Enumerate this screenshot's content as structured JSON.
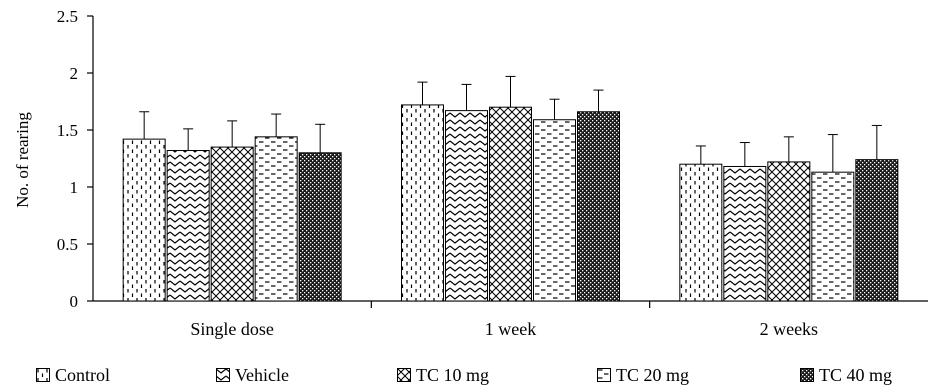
{
  "chart_data": {
    "type": "bar",
    "title": "",
    "xlabel": "",
    "ylabel": "No. of rearing",
    "ylim": [
      0,
      2.5
    ],
    "yticks": [
      "0",
      "0.5",
      "1",
      "1.5",
      "2",
      "2.5"
    ],
    "categories": [
      "Single dose",
      "1 week",
      "2 weeks"
    ],
    "grid": false,
    "legend_position": "bottom",
    "series": [
      {
        "name": "Control",
        "values": [
          1.42,
          1.72,
          1.2
        ],
        "errors": [
          0.24,
          0.2,
          0.16
        ],
        "pattern": "dash-vertical"
      },
      {
        "name": "Vehicle",
        "values": [
          1.32,
          1.67,
          1.18
        ],
        "errors": [
          0.19,
          0.23,
          0.21
        ],
        "pattern": "zigzag"
      },
      {
        "name": "TC 10 mg",
        "values": [
          1.35,
          1.7,
          1.22
        ],
        "errors": [
          0.23,
          0.27,
          0.22
        ],
        "pattern": "diamond"
      },
      {
        "name": "TC 20 mg",
        "values": [
          1.44,
          1.59,
          1.13
        ],
        "errors": [
          0.2,
          0.18,
          0.33
        ],
        "pattern": "dash-horizontal"
      },
      {
        "name": "TC 40 mg",
        "values": [
          1.3,
          1.66,
          1.24
        ],
        "errors": [
          0.25,
          0.19,
          0.3
        ],
        "pattern": "dark-check"
      }
    ]
  }
}
